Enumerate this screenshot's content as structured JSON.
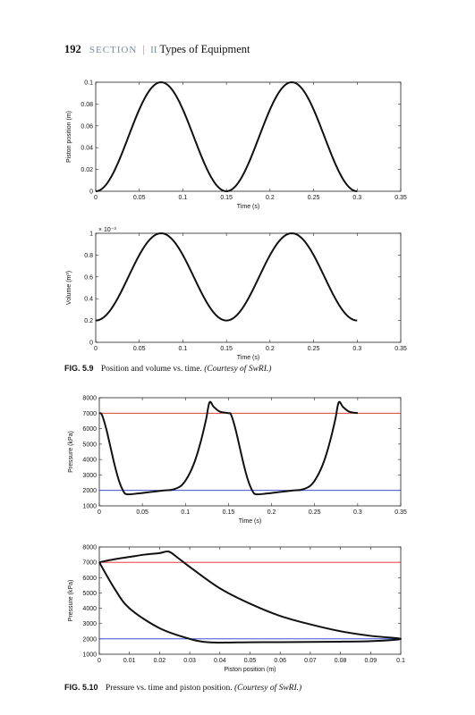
{
  "header": {
    "page_number": "192",
    "section_label": "SECTION",
    "separator": "|",
    "section_numeral": "II",
    "section_title": "Types of Equipment"
  },
  "captions": {
    "fig59": {
      "label": "FIG. 5.9",
      "text": "Position and volume vs. time.",
      "credit": "(Courtesy of SwRI.)"
    },
    "fig510": {
      "label": "FIG. 5.10",
      "text": "Pressure vs. time and piston position.",
      "credit": "(Courtesy of SwRI.)"
    }
  },
  "chart_data": [
    {
      "type": "line",
      "xlabel": "Time (s)",
      "ylabel": "Piston position (m)",
      "xlim": [
        0,
        0.35
      ],
      "ylim": [
        0,
        0.1
      ],
      "xticks": [
        "0",
        "0.05",
        "0.1",
        "0.15",
        "0.2",
        "0.25",
        "0.3",
        "0.35"
      ],
      "yticks": [
        "0",
        "0.02",
        "0.04",
        "0.06",
        "0.08",
        "0.1"
      ],
      "series": [
        {
          "color": "#111111",
          "formula": "0.05*(1-cos(2*pi*t/0.15))",
          "x_range": [
            0,
            0.3
          ]
        }
      ],
      "x": [
        0,
        0.0375,
        0.075,
        0.1125,
        0.15,
        0.1875,
        0.225,
        0.2625,
        0.3
      ],
      "values": [
        0,
        0.05,
        0.1,
        0.05,
        0,
        0.05,
        0.1,
        0.05,
        0
      ]
    },
    {
      "type": "line",
      "xlabel": "Time (s)",
      "ylabel": "Volume (m³)",
      "exponent_label": "× 10⁻³",
      "xlim": [
        0,
        0.35
      ],
      "ylim": [
        0,
        1
      ],
      "xticks": [
        "0",
        "0.05",
        "0.1",
        "0.15",
        "0.2",
        "0.25",
        "0.3",
        "0.35"
      ],
      "yticks": [
        "0",
        "0.2",
        "0.4",
        "0.6",
        "0.8",
        "1"
      ],
      "series": [
        {
          "color": "#111111",
          "formula": "0.6-0.4*cos(2*pi*t/0.15)",
          "x_range": [
            0,
            0.3
          ]
        }
      ],
      "x": [
        0,
        0.0375,
        0.075,
        0.1125,
        0.15,
        0.1875,
        0.225,
        0.2625,
        0.3
      ],
      "values": [
        0.2,
        0.6,
        1.0,
        0.6,
        0.2,
        0.6,
        1.0,
        0.6,
        0.2
      ]
    },
    {
      "type": "line",
      "xlabel": "Time (s)",
      "ylabel": "Pressure (kPa)",
      "xlim": [
        0,
        0.35
      ],
      "ylim": [
        1000,
        8000
      ],
      "xticks": [
        "0",
        "0.05",
        "0.1",
        "0.15",
        "0.2",
        "0.25",
        "0.3",
        "0.35"
      ],
      "yticks": [
        "1000",
        "2000",
        "3000",
        "4000",
        "5000",
        "6000",
        "7000",
        "8000"
      ],
      "reference_lines": [
        {
          "y": 7000,
          "color": "#dd2222"
        },
        {
          "y": 2000,
          "color": "#2233cc"
        }
      ],
      "series": [
        {
          "color": "#111111",
          "x": [
            0,
            0.003,
            0.008,
            0.013,
            0.018,
            0.023,
            0.028,
            0.032,
            0.045,
            0.06,
            0.075,
            0.085,
            0.095,
            0.103,
            0.111,
            0.118,
            0.124,
            0.128,
            0.133,
            0.14,
            0.15,
            0.153,
            0.158,
            0.163,
            0.168,
            0.173,
            0.178,
            0.182,
            0.195,
            0.21,
            0.225,
            0.235,
            0.245,
            0.253,
            0.261,
            0.268,
            0.274,
            0.278,
            0.283,
            0.29,
            0.3
          ],
          "y": [
            7000,
            6900,
            6000,
            4800,
            3600,
            2600,
            1950,
            1750,
            1800,
            1900,
            2000,
            2050,
            2300,
            2900,
            3900,
            5200,
            6600,
            7700,
            7400,
            7100,
            7000,
            6900,
            6000,
            4800,
            3600,
            2600,
            1950,
            1750,
            1800,
            1900,
            2000,
            2050,
            2300,
            2900,
            3900,
            5200,
            6600,
            7700,
            7400,
            7100,
            7000
          ]
        }
      ]
    },
    {
      "type": "line",
      "xlabel": "Piston position (m)",
      "ylabel": "Pressure (kPa)",
      "xlim": [
        0,
        0.1
      ],
      "ylim": [
        1000,
        8000
      ],
      "xticks": [
        "0",
        "0.01",
        "0.02",
        "0.03",
        "0.04",
        "0.05",
        "0.06",
        "0.07",
        "0.08",
        "0.09",
        "0.1"
      ],
      "yticks": [
        "1000",
        "2000",
        "3000",
        "4000",
        "5000",
        "6000",
        "7000",
        "8000"
      ],
      "reference_lines": [
        {
          "y": 7000,
          "color": "#dd2222"
        },
        {
          "y": 2000,
          "color": "#2233cc"
        }
      ],
      "series": [
        {
          "color": "#111111",
          "x": [
            0,
            0.005,
            0.01,
            0.015,
            0.02,
            0.023,
            0.026,
            0.03,
            0.04,
            0.05,
            0.06,
            0.07,
            0.08,
            0.09,
            0.1,
            0.09,
            0.08,
            0.07,
            0.06,
            0.05,
            0.04,
            0.035,
            0.03,
            0.02,
            0.01,
            0.005,
            0
          ],
          "y": [
            7000,
            7200,
            7350,
            7500,
            7600,
            7700,
            7300,
            6700,
            5300,
            4300,
            3500,
            2950,
            2500,
            2200,
            2000,
            1850,
            1820,
            1800,
            1790,
            1780,
            1760,
            1800,
            2000,
            2700,
            4000,
            5300,
            7000
          ]
        }
      ]
    }
  ]
}
